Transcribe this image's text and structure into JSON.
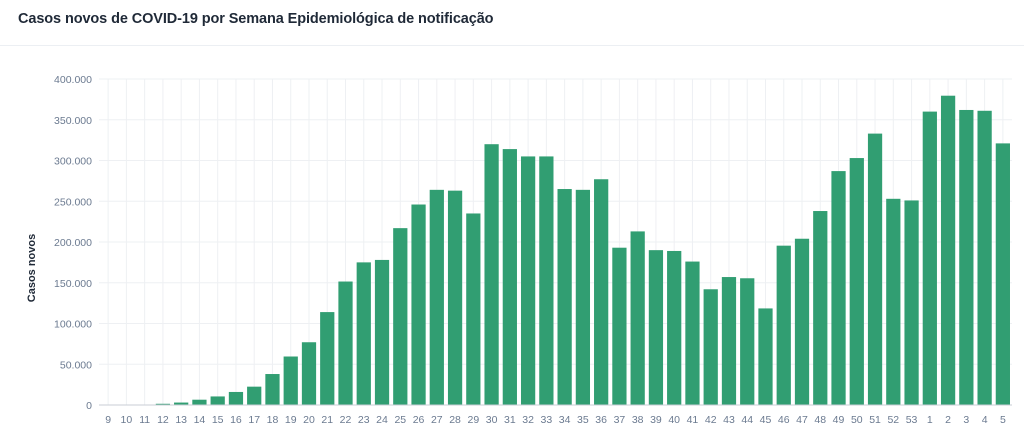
{
  "chart_data": {
    "type": "bar",
    "title": "Casos novos de COVID-19 por Semana Epidemiológica de notificação",
    "ylabel": "Casos novos",
    "xlabel": "",
    "ylim": [
      0,
      400000
    ],
    "yticks": [
      "0",
      "50.000",
      "100.000",
      "150.000",
      "200.000",
      "250.000",
      "300.000",
      "350.000",
      "400.000"
    ],
    "grid": true,
    "bar_color": "#319e72",
    "categories": [
      "9",
      "10",
      "11",
      "12",
      "13",
      "14",
      "15",
      "16",
      "17",
      "18",
      "19",
      "20",
      "21",
      "22",
      "23",
      "24",
      "25",
      "26",
      "27",
      "28",
      "29",
      "30",
      "31",
      "32",
      "33",
      "34",
      "35",
      "36",
      "37",
      "38",
      "39",
      "40",
      "41",
      "42",
      "43",
      "44",
      "45",
      "46",
      "47",
      "48",
      "49",
      "50",
      "51",
      "52",
      "53",
      "1",
      "2",
      "3",
      "4",
      "5"
    ],
    "values": [
      0,
      200,
      500,
      1500,
      3000,
      6500,
      10500,
      16000,
      22500,
      38000,
      59500,
      77000,
      114000,
      151500,
      175000,
      178000,
      217000,
      246000,
      264000,
      263000,
      235000,
      320000,
      314000,
      305000,
      305000,
      265000,
      264000,
      277000,
      193000,
      213000,
      190000,
      189000,
      176000,
      142000,
      157000,
      155500,
      118500,
      195500,
      204000,
      238000,
      287000,
      303000,
      333000,
      253000,
      251000,
      360000,
      379500,
      362000,
      361000,
      321000
    ]
  }
}
